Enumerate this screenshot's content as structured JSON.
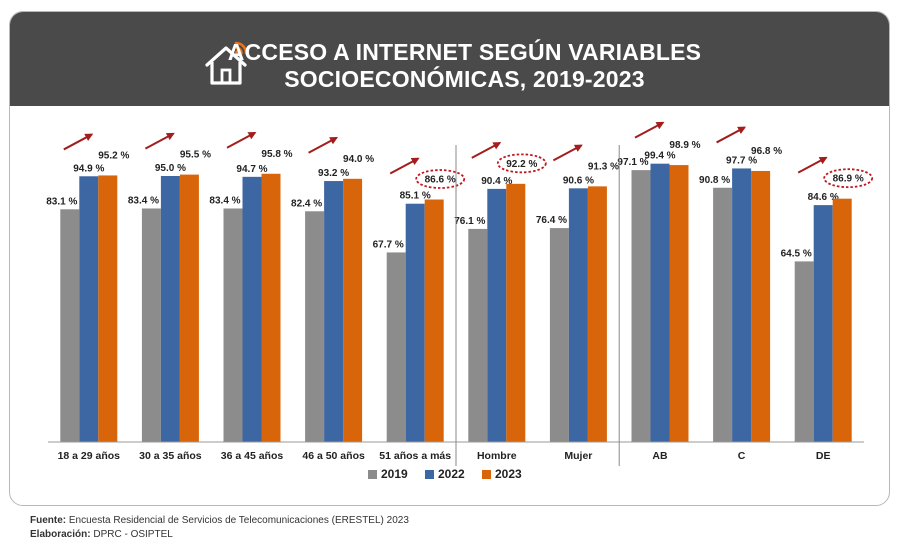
{
  "title": {
    "line1": "ACCESO A INTERNET SEGÚN VARIABLES",
    "line2": "SOCIOECONÓMICAS, 2019-2023"
  },
  "icon": "house-wifi-icon",
  "colors": {
    "header_bg": "#4a4a4a",
    "2019": "#8c8c8c",
    "2022": "#3d67a3",
    "2023": "#d9650a",
    "arrow": "#a31d1d",
    "highlight": "#c0181f"
  },
  "chart_data": {
    "type": "bar",
    "title": "ACCESO A INTERNET SEGÚN VARIABLES SOCIOECONÓMICAS, 2019-2023",
    "categories": [
      "18 a 29 años",
      "30 a 35 años",
      "36 a 45 años",
      "46 a 50 años",
      "51 años a más",
      "Hombre",
      "Mujer",
      "AB",
      "C",
      "DE"
    ],
    "groups": [
      {
        "categories": [
          "18 a 29 años",
          "30 a 35 años",
          "36 a 45 años",
          "46 a 50 años",
          "51 años a más"
        ]
      },
      {
        "categories": [
          "Hombre",
          "Mujer"
        ]
      },
      {
        "categories": [
          "AB",
          "C",
          "DE"
        ]
      }
    ],
    "series": [
      {
        "name": "2019",
        "values": [
          83.1,
          83.4,
          83.4,
          82.4,
          67.7,
          76.1,
          76.4,
          97.1,
          90.8,
          64.5
        ],
        "labels": [
          "83.1 %",
          "83.4 %",
          "83.4 %",
          "82.4 %",
          "67.7 %",
          "76.1 %",
          "76.4 %",
          "97.1 %",
          "90.8 %",
          "64.5 %"
        ]
      },
      {
        "name": "2022",
        "values": [
          94.9,
          95.0,
          94.7,
          93.2,
          85.1,
          90.4,
          90.6,
          99.4,
          97.7,
          84.6
        ],
        "labels": [
          "94.9 %",
          "95.0 %",
          "94.7 %",
          "93.2 %",
          "85.1 %",
          "90.4 %",
          "90.6 %",
          "99.4 %",
          "97.7 %",
          "84.6 %"
        ]
      },
      {
        "name": "2023",
        "values": [
          95.2,
          95.5,
          95.8,
          94.0,
          86.6,
          92.2,
          91.3,
          98.9,
          96.8,
          86.9
        ],
        "labels": [
          "95.2 %",
          "95.5 %",
          "95.8 %",
          "94.0 %",
          "86.6 %",
          "92.2 %",
          "91.3 %",
          "98.9 %",
          "96.8 %",
          "86.9 %"
        ]
      }
    ],
    "highlighted": [
      {
        "category": "51 años a más",
        "series": "2023"
      },
      {
        "category": "Hombre",
        "series": "2023"
      },
      {
        "category": "DE",
        "series": "2023"
      }
    ],
    "trend_arrows": "up, above each category",
    "ylim": [
      0,
      100
    ],
    "ylabel": "",
    "xlabel": "",
    "grid": false,
    "legend": {
      "position": "bottom",
      "entries": [
        "2019",
        "2022",
        "2023"
      ]
    }
  },
  "footer": {
    "source_label": "Fuente:",
    "source_text": "Encuesta Residencial de Servicios de Telecomunicaciones (ERESTEL) 2023",
    "credit_label": "Elaboración:",
    "credit_text": "DPRC - OSIPTEL"
  }
}
